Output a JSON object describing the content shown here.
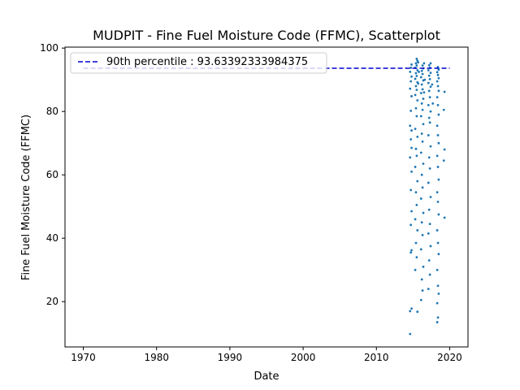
{
  "chart_data": {
    "type": "scatter",
    "title": "MUDPIT - Fine Fuel Moisture Code (FFMC), Scatterplot",
    "xlabel": "Date",
    "ylabel": "Fine Fuel Moisture Code (FFMC)",
    "xlim": [
      1967.5,
      2022.5
    ],
    "ylim": [
      5.7,
      100.3
    ],
    "x_ticks": [
      1970,
      1980,
      1990,
      2000,
      2010,
      2020
    ],
    "y_ticks": [
      20,
      40,
      60,
      80,
      100
    ],
    "grid": false,
    "legend_position": "top-left",
    "series": [
      {
        "color": "#1f77b4",
        "points": [
          [
            2014.6,
            9.8
          ],
          [
            2014.6,
            17.0
          ],
          [
            2014.8,
            17.8
          ],
          [
            2015.6,
            16.8
          ],
          [
            2014.7,
            35.5
          ],
          [
            2014.8,
            36.2
          ],
          [
            2014.7,
            55.2
          ],
          [
            2014.8,
            61.0
          ],
          [
            2014.6,
            65.5
          ],
          [
            2014.8,
            68.5
          ],
          [
            2014.7,
            71.2
          ],
          [
            2014.8,
            74.0
          ],
          [
            2014.6,
            75.5
          ],
          [
            2014.7,
            80.2
          ],
          [
            2014.8,
            84.8
          ],
          [
            2014.6,
            87.2
          ],
          [
            2014.7,
            89.5
          ],
          [
            2014.8,
            91.0
          ],
          [
            2014.6,
            92.5
          ],
          [
            2014.7,
            93.8
          ],
          [
            2014.8,
            94.8
          ],
          [
            2014.7,
            44.2
          ],
          [
            2014.8,
            48.5
          ],
          [
            2015.3,
            30.0
          ],
          [
            2015.5,
            34.0
          ],
          [
            2015.4,
            38.5
          ],
          [
            2015.6,
            42.5
          ],
          [
            2015.3,
            46.0
          ],
          [
            2015.5,
            50.5
          ],
          [
            2015.4,
            54.5
          ],
          [
            2015.6,
            58.0
          ],
          [
            2015.3,
            62.5
          ],
          [
            2015.5,
            66.0
          ],
          [
            2015.4,
            68.2
          ],
          [
            2015.6,
            72.0
          ],
          [
            2015.3,
            74.5
          ],
          [
            2015.5,
            78.5
          ],
          [
            2015.4,
            81.0
          ],
          [
            2015.6,
            83.5
          ],
          [
            2015.3,
            85.2
          ],
          [
            2015.5,
            86.8
          ],
          [
            2015.4,
            88.0
          ],
          [
            2015.6,
            89.2
          ],
          [
            2015.3,
            90.3
          ],
          [
            2015.5,
            91.2
          ],
          [
            2015.4,
            92.1
          ],
          [
            2015.6,
            93.0
          ],
          [
            2015.3,
            93.8
          ],
          [
            2015.5,
            94.5
          ],
          [
            2015.4,
            95.2
          ],
          [
            2015.6,
            96.0
          ],
          [
            2015.5,
            96.6
          ],
          [
            2015.7,
            95.5
          ],
          [
            2015.8,
            92.5
          ],
          [
            2015.7,
            88.8
          ],
          [
            2016.1,
            20.5
          ],
          [
            2016.3,
            23.5
          ],
          [
            2016.2,
            27.0
          ],
          [
            2016.4,
            31.0
          ],
          [
            2016.1,
            36.5
          ],
          [
            2016.3,
            41.0
          ],
          [
            2016.2,
            45.0
          ],
          [
            2016.4,
            48.0
          ],
          [
            2016.1,
            52.5
          ],
          [
            2016.3,
            56.0
          ],
          [
            2016.2,
            60.0
          ],
          [
            2016.4,
            63.5
          ],
          [
            2016.1,
            67.0
          ],
          [
            2016.3,
            70.5
          ],
          [
            2016.2,
            73.0
          ],
          [
            2016.4,
            76.0
          ],
          [
            2016.1,
            78.5
          ],
          [
            2016.3,
            80.5
          ],
          [
            2016.2,
            82.5
          ],
          [
            2016.4,
            84.0
          ],
          [
            2016.1,
            85.8
          ],
          [
            2016.3,
            87.0
          ],
          [
            2016.2,
            88.5
          ],
          [
            2016.4,
            89.8
          ],
          [
            2016.1,
            90.8
          ],
          [
            2016.3,
            91.8
          ],
          [
            2016.2,
            92.8
          ],
          [
            2016.4,
            93.6
          ],
          [
            2016.3,
            94.5
          ],
          [
            2016.5,
            95.2
          ],
          [
            2016.6,
            90.0
          ],
          [
            2016.5,
            86.0
          ],
          [
            2017.1,
            24.0
          ],
          [
            2017.3,
            28.5
          ],
          [
            2017.2,
            33.0
          ],
          [
            2017.4,
            37.5
          ],
          [
            2017.1,
            41.5
          ],
          [
            2017.3,
            44.5
          ],
          [
            2017.2,
            49.0
          ],
          [
            2017.4,
            53.0
          ],
          [
            2017.1,
            57.5
          ],
          [
            2017.3,
            62.0
          ],
          [
            2017.2,
            65.5
          ],
          [
            2017.4,
            69.0
          ],
          [
            2017.1,
            72.5
          ],
          [
            2017.3,
            76.5
          ],
          [
            2017.2,
            78.0
          ],
          [
            2017.4,
            80.0
          ],
          [
            2017.1,
            82.0
          ],
          [
            2017.3,
            84.5
          ],
          [
            2017.2,
            86.5
          ],
          [
            2017.4,
            87.8
          ],
          [
            2017.1,
            89.0
          ],
          [
            2017.3,
            90.2
          ],
          [
            2017.2,
            91.3
          ],
          [
            2017.4,
            92.2
          ],
          [
            2017.1,
            93.0
          ],
          [
            2017.3,
            93.8
          ],
          [
            2017.2,
            94.6
          ],
          [
            2017.4,
            95.2
          ],
          [
            2017.6,
            88.5
          ],
          [
            2017.7,
            82.5
          ],
          [
            2018.3,
            13.5
          ],
          [
            2018.4,
            15.0
          ],
          [
            2018.3,
            19.5
          ],
          [
            2018.5,
            22.5
          ],
          [
            2018.4,
            25.0
          ],
          [
            2018.3,
            30.0
          ],
          [
            2018.5,
            35.0
          ],
          [
            2018.4,
            38.5
          ],
          [
            2018.3,
            42.5
          ],
          [
            2018.5,
            47.5
          ],
          [
            2018.4,
            51.5
          ],
          [
            2018.3,
            54.5
          ],
          [
            2018.5,
            58.5
          ],
          [
            2018.4,
            62.5
          ],
          [
            2018.3,
            66.0
          ],
          [
            2018.5,
            70.0
          ],
          [
            2018.4,
            72.5
          ],
          [
            2018.3,
            75.5
          ],
          [
            2018.5,
            79.0
          ],
          [
            2018.4,
            82.0
          ],
          [
            2018.3,
            84.5
          ],
          [
            2018.5,
            86.5
          ],
          [
            2018.4,
            88.0
          ],
          [
            2018.3,
            89.5
          ],
          [
            2018.5,
            90.5
          ],
          [
            2018.4,
            91.5
          ],
          [
            2018.3,
            92.4
          ],
          [
            2018.5,
            93.2
          ],
          [
            2018.4,
            94.0
          ],
          [
            2019.3,
            46.5
          ],
          [
            2019.2,
            64.5
          ],
          [
            2019.3,
            68.0
          ],
          [
            2019.2,
            80.5
          ],
          [
            2019.3,
            86.2
          ]
        ]
      }
    ],
    "reference_line": {
      "label": "90th percentile : 93.63392333984375",
      "value": 93.63392333984375,
      "x_range": [
        1970,
        2020
      ],
      "color": "#0000cd",
      "style": "dashed"
    }
  }
}
